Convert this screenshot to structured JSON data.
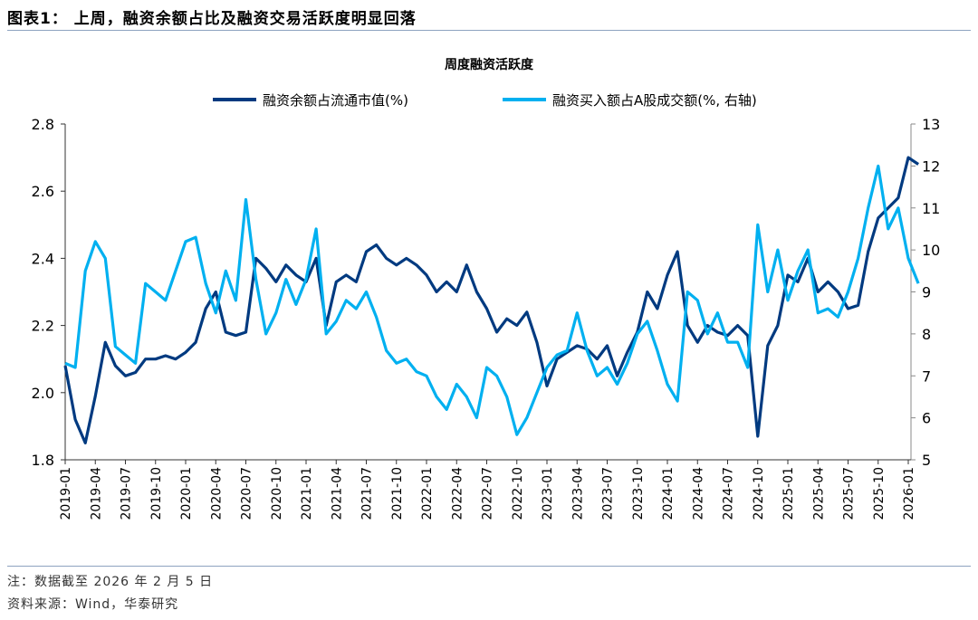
{
  "header": {
    "title": "图表1：  上周，融资余额占比及融资交易活跃度明显回落"
  },
  "footer": {
    "note": "注：数据截至 2026 年 2 月 5 日",
    "source": "资料来源：Wind，华泰研究"
  },
  "chart_data": {
    "type": "line",
    "title": "周度融资活跃度",
    "legend_placement": "top-center",
    "grid": false,
    "x": [
      "2019-01",
      "2019-02",
      "2019-03",
      "2019-04",
      "2019-05",
      "2019-06",
      "2019-07",
      "2019-08",
      "2019-09",
      "2019-10",
      "2019-11",
      "2019-12",
      "2020-01",
      "2020-02",
      "2020-03",
      "2020-04",
      "2020-05",
      "2020-06",
      "2020-07",
      "2020-08",
      "2020-09",
      "2020-10",
      "2020-11",
      "2020-12",
      "2021-01",
      "2021-02",
      "2021-03",
      "2021-04",
      "2021-05",
      "2021-06",
      "2021-07",
      "2021-08",
      "2021-09",
      "2021-10",
      "2021-11",
      "2021-12",
      "2022-01",
      "2022-02",
      "2022-03",
      "2022-04",
      "2022-05",
      "2022-06",
      "2022-07",
      "2022-08",
      "2022-09",
      "2022-10",
      "2022-11",
      "2022-12",
      "2023-01",
      "2023-02",
      "2023-03",
      "2023-04",
      "2023-05",
      "2023-06",
      "2023-07",
      "2023-08",
      "2023-09",
      "2023-10",
      "2023-11",
      "2023-12",
      "2024-01",
      "2024-02",
      "2024-03",
      "2024-04",
      "2024-05",
      "2024-06",
      "2024-07",
      "2024-08",
      "2024-09",
      "2024-10",
      "2024-11",
      "2024-12",
      "2025-01",
      "2025-02",
      "2025-03",
      "2025-04",
      "2025-05",
      "2025-06",
      "2025-07",
      "2025-08",
      "2025-09",
      "2025-10",
      "2025-11",
      "2025-12",
      "2026-01",
      "2026-02"
    ],
    "x_tick_labels": [
      "2019-01",
      "2019-04",
      "2019-07",
      "2019-10",
      "2020-01",
      "2020-04",
      "2020-07",
      "2020-10",
      "2021-01",
      "2021-04",
      "2021-07",
      "2021-10",
      "2022-01",
      "2022-04",
      "2022-07",
      "2022-10",
      "2023-01",
      "2023-04",
      "2023-07",
      "2023-10",
      "2024-01",
      "2024-04",
      "2024-07",
      "2024-10",
      "2025-01",
      "2025-04",
      "2025-07",
      "2025-10",
      "2026-01"
    ],
    "y_left": {
      "range": [
        1.8,
        2.8
      ],
      "ticks": [
        "1.8",
        "2.0",
        "2.2",
        "2.4",
        "2.6",
        "2.8"
      ]
    },
    "y_right": {
      "range": [
        5,
        13
      ],
      "ticks": [
        "5",
        "6",
        "7",
        "8",
        "9",
        "10",
        "11",
        "12",
        "13"
      ]
    },
    "series": [
      {
        "name": "融资余额占流通市值(%)",
        "axis": "left",
        "color": "#003a80",
        "values": [
          2.08,
          1.92,
          1.85,
          1.99,
          2.15,
          2.08,
          2.05,
          2.06,
          2.1,
          2.1,
          2.11,
          2.1,
          2.12,
          2.15,
          2.25,
          2.3,
          2.18,
          2.17,
          2.18,
          2.4,
          2.37,
          2.33,
          2.38,
          2.35,
          2.33,
          2.4,
          2.2,
          2.33,
          2.35,
          2.33,
          2.42,
          2.44,
          2.4,
          2.38,
          2.4,
          2.38,
          2.35,
          2.3,
          2.33,
          2.3,
          2.38,
          2.3,
          2.25,
          2.18,
          2.22,
          2.2,
          2.24,
          2.15,
          2.02,
          2.1,
          2.12,
          2.14,
          2.13,
          2.1,
          2.14,
          2.05,
          2.12,
          2.18,
          2.3,
          2.25,
          2.35,
          2.42,
          2.2,
          2.15,
          2.2,
          2.18,
          2.17,
          2.2,
          2.17,
          1.87,
          2.14,
          2.2,
          2.35,
          2.33,
          2.4,
          2.3,
          2.33,
          2.3,
          2.25,
          2.26,
          2.42,
          2.52,
          2.55,
          2.58,
          2.7,
          2.68
        ]
      },
      {
        "name": "融资买入额占A股成交额(%, 右轴)",
        "axis": "right",
        "color": "#00b0f0",
        "values": [
          7.3,
          7.2,
          9.5,
          10.2,
          9.8,
          7.7,
          7.5,
          7.3,
          9.2,
          9.0,
          8.8,
          9.5,
          10.2,
          10.3,
          9.2,
          8.5,
          9.5,
          8.8,
          11.2,
          9.3,
          8.0,
          8.5,
          9.3,
          8.7,
          9.3,
          10.5,
          8.0,
          8.3,
          8.8,
          8.6,
          9.0,
          8.4,
          7.6,
          7.3,
          7.4,
          7.1,
          7.0,
          6.5,
          6.2,
          6.8,
          6.5,
          6.0,
          7.2,
          7.0,
          6.5,
          5.6,
          6.0,
          6.6,
          7.2,
          7.5,
          7.6,
          8.5,
          7.6,
          7.0,
          7.2,
          6.8,
          7.3,
          8.0,
          8.3,
          7.6,
          6.8,
          6.4,
          9.0,
          8.8,
          8.0,
          8.5,
          7.8,
          7.8,
          7.2,
          10.6,
          9.0,
          10.0,
          8.8,
          9.5,
          10.0,
          8.5,
          8.6,
          8.4,
          9.0,
          9.8,
          11.0,
          12.0,
          10.5,
          11.0,
          9.8,
          9.2
        ]
      }
    ]
  }
}
